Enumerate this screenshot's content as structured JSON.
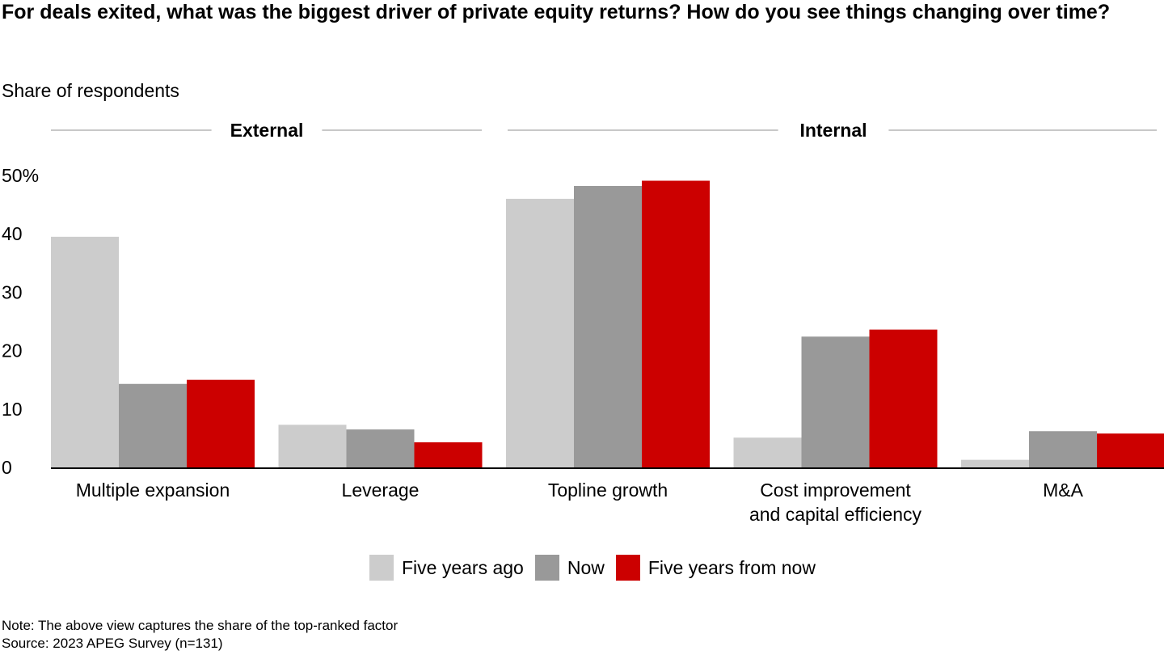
{
  "title": "For deals exited, what was the biggest driver of private equity returns? How do you see things changing over time?",
  "subtitle": "Share of respondents",
  "note": "Note: The above view captures the share of the top-ranked factor",
  "source": "Source: 2023 APEG Survey (n=131)",
  "chart_data": {
    "type": "bar",
    "categories": [
      "Multiple expansion",
      "Leverage",
      "Topline growth",
      "Cost improvement and capital efficiency",
      "M&A"
    ],
    "category_label_lines": [
      [
        "Multiple expansion"
      ],
      [
        "Leverage"
      ],
      [
        "Topline growth"
      ],
      [
        "Cost improvement",
        "and capital efficiency"
      ],
      [
        "M&A"
      ]
    ],
    "groups": [
      {
        "label": "External",
        "categories": [
          "Multiple expansion",
          "Leverage"
        ]
      },
      {
        "label": "Internal",
        "categories": [
          "Topline growth",
          "Cost improvement and capital efficiency",
          "M&A"
        ]
      }
    ],
    "series": [
      {
        "name": "Five years ago",
        "color": "#cccccc",
        "values": [
          39.5,
          7.3,
          46,
          5.1,
          1.3
        ]
      },
      {
        "name": "Now",
        "color": "#999999",
        "values": [
          14.3,
          6.5,
          48.2,
          22.4,
          6.2
        ]
      },
      {
        "name": "Five years from now",
        "color": "#cc0000",
        "values": [
          15,
          4.3,
          49.1,
          23.6,
          5.8
        ]
      }
    ],
    "y_ticks": [
      "0",
      "10",
      "20",
      "30",
      "40",
      "50%"
    ],
    "ylim": [
      0,
      50
    ],
    "grid": false,
    "legend_position": "bottom-center"
  }
}
